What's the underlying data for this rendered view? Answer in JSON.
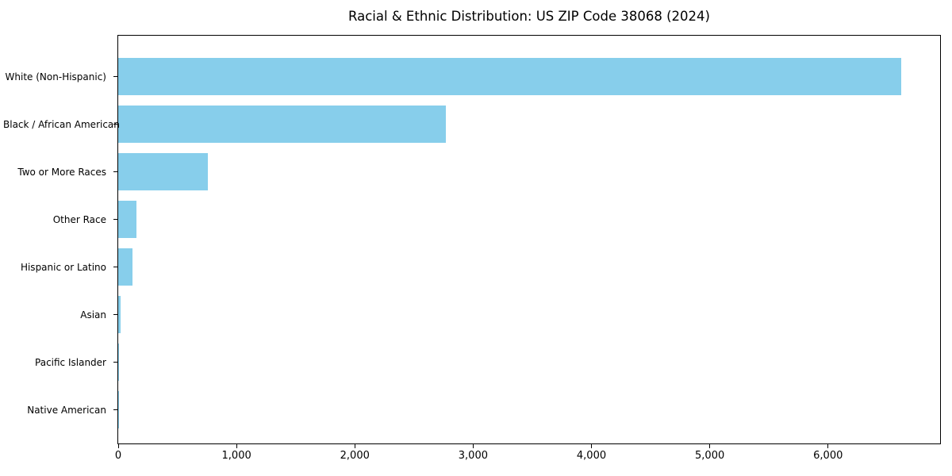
{
  "chart_data": {
    "type": "bar",
    "orientation": "horizontal",
    "title": "Racial & Ethnic Distribution: US ZIP Code 38068 (2024)",
    "categories": [
      "White (Non-Hispanic)",
      "Black / African American",
      "Two or More Races",
      "Other Race",
      "Hispanic or Latino",
      "Asian",
      "Pacific Islander",
      "Native American"
    ],
    "values": [
      6616,
      2770,
      760,
      155,
      120,
      23,
      2,
      7
    ],
    "xlabel": "",
    "ylabel": "",
    "xlim": [
      0,
      6947
    ],
    "x_ticks": [
      0,
      1000,
      2000,
      3000,
      4000,
      5000,
      6000
    ],
    "x_tick_labels": [
      "0",
      "1,000",
      "2,000",
      "3,000",
      "4,000",
      "5,000",
      "6,000"
    ],
    "bar_color": "#87CEEB",
    "spine_color": "#000000",
    "grid": false,
    "legend": "none"
  }
}
